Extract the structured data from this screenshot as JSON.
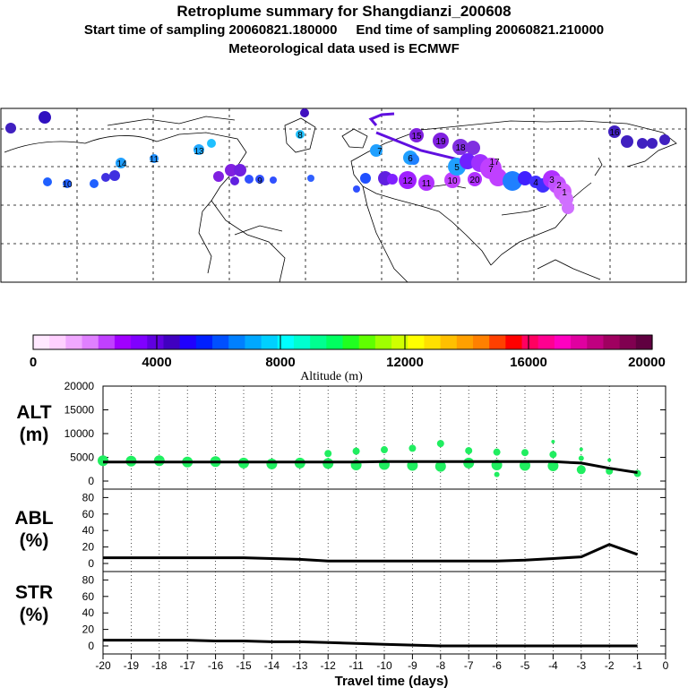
{
  "header": {
    "title": "Retroplume summary for Shangdianzi_200608",
    "subtitle": "Start time of sampling 20060821.180000     End time of sampling 20060821.210000",
    "met": "Meteorological data used is ECMWF"
  },
  "colorbar": {
    "ticks": [
      "0",
      "4000",
      "8000",
      "12000",
      "16000",
      "20000"
    ],
    "label": "Altitude (m)",
    "colors": [
      "#ffe8ff",
      "#ffd0ff",
      "#f0a8ff",
      "#e080ff",
      "#c040ff",
      "#a000ff",
      "#8000ff",
      "#6000e0",
      "#4000c0",
      "#2000ff",
      "#0020ff",
      "#0050ff",
      "#0080ff",
      "#00a8ff",
      "#00d0ff",
      "#00ffff",
      "#00ffd0",
      "#00ff90",
      "#00ff60",
      "#20ff20",
      "#60ff00",
      "#a0ff00",
      "#d0ff00",
      "#ffff00",
      "#ffe000",
      "#ffc000",
      "#ffa000",
      "#ff8000",
      "#ff4000",
      "#ff0000",
      "#ff0060",
      "#ff0090",
      "#ff00c0",
      "#e000a0",
      "#c00080",
      "#a00060",
      "#800050",
      "#600040"
    ]
  },
  "map": {
    "labels": [
      "16",
      "4",
      "7",
      "6",
      "5",
      "7",
      "9",
      "11",
      "10",
      "12",
      "11",
      "10",
      "14",
      "13",
      "19",
      "20",
      "18",
      "15",
      "17",
      "3",
      "2",
      "1",
      "8"
    ]
  },
  "chart_data": [
    {
      "type": "line",
      "name": "ALT",
      "ylabel": "ALT\n(m)",
      "ylabel_lines": [
        "ALT",
        "(m)"
      ],
      "ylim": [
        0,
        20000
      ],
      "yticks": [
        "0",
        "5000",
        "10000",
        "15000",
        "20000"
      ],
      "x": [
        -20,
        -19,
        -18,
        -17,
        -16,
        -15,
        -14,
        -13,
        -12,
        -11,
        -10,
        -9,
        -8,
        -7,
        -6,
        -5,
        -4,
        -3,
        -2,
        -1
      ],
      "values": [
        4000,
        4000,
        4000,
        4000,
        4000,
        4000,
        4000,
        4000,
        4000,
        4000,
        4100,
        4100,
        4100,
        4100,
        4100,
        4100,
        4100,
        3800,
        2700,
        1800
      ],
      "scatter": [
        {
          "x": -20,
          "y": 4300,
          "r": 6
        },
        {
          "x": -19,
          "y": 4200,
          "r": 6
        },
        {
          "x": -18,
          "y": 4300,
          "r": 6
        },
        {
          "x": -17,
          "y": 4000,
          "r": 6
        },
        {
          "x": -16,
          "y": 4100,
          "r": 6
        },
        {
          "x": -15,
          "y": 3800,
          "r": 6
        },
        {
          "x": -14,
          "y": 3600,
          "r": 6
        },
        {
          "x": -13,
          "y": 3800,
          "r": 6
        },
        {
          "x": -12,
          "y": 3700,
          "r": 6
        },
        {
          "x": -12,
          "y": 5800,
          "r": 4
        },
        {
          "x": -11,
          "y": 3400,
          "r": 6
        },
        {
          "x": -11,
          "y": 6300,
          "r": 4
        },
        {
          "x": -10,
          "y": 3500,
          "r": 6
        },
        {
          "x": -10,
          "y": 6600,
          "r": 4
        },
        {
          "x": -9,
          "y": 3300,
          "r": 6
        },
        {
          "x": -9,
          "y": 6900,
          "r": 4
        },
        {
          "x": -8,
          "y": 3100,
          "r": 6
        },
        {
          "x": -8,
          "y": 7900,
          "r": 4
        },
        {
          "x": -7,
          "y": 3800,
          "r": 6
        },
        {
          "x": -7,
          "y": 6400,
          "r": 4
        },
        {
          "x": -6,
          "y": 3400,
          "r": 6
        },
        {
          "x": -6,
          "y": 6100,
          "r": 4
        },
        {
          "x": -6,
          "y": 1400,
          "r": 3
        },
        {
          "x": -5,
          "y": 3300,
          "r": 6
        },
        {
          "x": -5,
          "y": 6000,
          "r": 4
        },
        {
          "x": -4,
          "y": 3200,
          "r": 6
        },
        {
          "x": -4,
          "y": 5600,
          "r": 4
        },
        {
          "x": -4,
          "y": 8300,
          "r": 2
        },
        {
          "x": -3,
          "y": 2400,
          "r": 5
        },
        {
          "x": -3,
          "y": 4800,
          "r": 3
        },
        {
          "x": -3,
          "y": 6700,
          "r": 2
        },
        {
          "x": -2,
          "y": 2100,
          "r": 4
        },
        {
          "x": -2,
          "y": 4400,
          "r": 2
        },
        {
          "x": -1,
          "y": 1600,
          "r": 4
        }
      ]
    },
    {
      "type": "line",
      "name": "ABL",
      "ylabel": "ABL\n(%)",
      "ylabel_lines": [
        "ABL",
        "(%)"
      ],
      "ylim": [
        0,
        100
      ],
      "yticks": [
        "0",
        "20",
        "40",
        "60",
        "80"
      ],
      "x": [
        -20,
        -19,
        -18,
        -17,
        -16,
        -15,
        -14,
        -13,
        -12,
        -11,
        -10,
        -9,
        -8,
        -7,
        -6,
        -5,
        -4,
        -3,
        -2,
        -1
      ],
      "values": [
        7,
        7,
        7,
        7,
        7,
        7,
        6,
        5,
        3,
        3,
        3,
        3,
        3,
        3,
        3,
        4,
        6,
        8,
        23,
        11
      ]
    },
    {
      "type": "line",
      "name": "STR",
      "ylabel": "STR\n(%)",
      "ylabel_lines": [
        "STR",
        "(%)"
      ],
      "ylim": [
        0,
        100
      ],
      "yticks": [
        "0",
        "20",
        "40",
        "60",
        "80"
      ],
      "x": [
        -20,
        -19,
        -18,
        -17,
        -16,
        -15,
        -14,
        -13,
        -12,
        -11,
        -10,
        -9,
        -8,
        -7,
        -6,
        -5,
        -4,
        -3,
        -2,
        -1
      ],
      "values": [
        7,
        7,
        7,
        7,
        6,
        6,
        5,
        5,
        4,
        3,
        2,
        1,
        0,
        0,
        0,
        0,
        0,
        0,
        0,
        0
      ]
    }
  ],
  "xaxis": {
    "ticks": [
      "-20",
      "-19",
      "-18",
      "-17",
      "-16",
      "-15",
      "-14",
      "-13",
      "-12",
      "-11",
      "-10",
      "-9",
      "-8",
      "-7",
      "-6",
      "-5",
      "-4",
      "-3",
      "-2",
      "-1",
      "0"
    ],
    "label": "Travel time (days)"
  }
}
